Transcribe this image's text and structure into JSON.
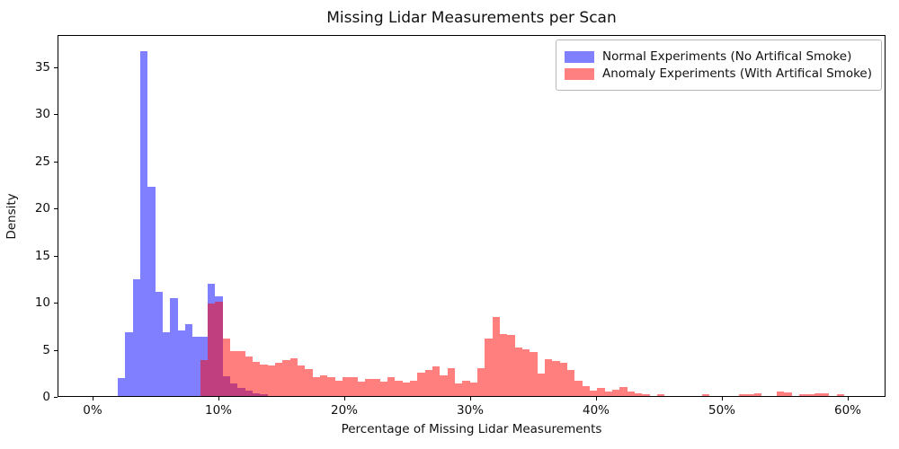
{
  "title": "Missing Lidar Measurements per Scan",
  "xlabel": "Percentage of Missing Lidar Measurements",
  "ylabel": "Density",
  "legend": [
    {
      "label": "Normal Experiments (No Artifical Smoke)",
      "color": "rgba(0,0,255,0.5)",
      "swatch_hex": "#8080ff"
    },
    {
      "label": "Anomaly Experiments (With Artifical Smoke)",
      "color": "rgba(255,0,0,0.5)",
      "swatch_hex": "#ff8080"
    }
  ],
  "chart_data": {
    "type": "bar",
    "subtype": "overlapping-density-histograms",
    "title": "Missing Lidar Measurements per Scan",
    "xlabel": "Percentage of Missing Lidar Measurements",
    "ylabel": "Density",
    "grid": false,
    "legend_position": "upper right",
    "xlim_pct": [
      -2.786,
      63.0
    ],
    "ylim": [
      0,
      38.4
    ],
    "x_tick_values_pct": [
      0,
      10,
      20,
      30,
      40,
      50,
      60
    ],
    "x_tick_labels": [
      "0%",
      "10%",
      "20%",
      "30%",
      "40%",
      "50%",
      "60%"
    ],
    "y_tick_values": [
      0,
      5,
      10,
      15,
      20,
      25,
      30,
      35
    ],
    "y_tick_labels": [
      "0",
      "5",
      "10",
      "15",
      "20",
      "25",
      "30",
      "35"
    ],
    "bin_width_pct": 0.595,
    "series": [
      {
        "name": "Normal Experiments (No Artifical Smoke)",
        "color": "rgba(0,0,255,0.5)",
        "bin_start_pct": 1.93,
        "densities": [
          1.9,
          6.8,
          12.4,
          36.6,
          22.2,
          11.1,
          6.8,
          10.35,
          7.0,
          7.6,
          6.3,
          6.3,
          11.9,
          10.6,
          2.1,
          1.3,
          0.9,
          0.55,
          0.3,
          0.15
        ]
      },
      {
        "name": "Anomaly Experiments (With Artifical Smoke)",
        "color": "rgba(255,0,0,0.5)",
        "bin_start_pct": 8.48,
        "densities": [
          3.8,
          9.8,
          10.0,
          6.1,
          4.8,
          4.75,
          4.2,
          3.6,
          3.3,
          3.2,
          3.5,
          3.8,
          4.05,
          3.25,
          2.9,
          2.0,
          2.2,
          2.0,
          1.6,
          2.0,
          2.0,
          1.5,
          1.8,
          1.8,
          1.5,
          2.0,
          1.65,
          1.4,
          1.65,
          2.5,
          2.75,
          3.1,
          2.2,
          3.0,
          1.3,
          1.6,
          1.45,
          3.0,
          6.1,
          8.4,
          6.6,
          6.45,
          5.1,
          5.0,
          4.7,
          2.4,
          3.9,
          3.7,
          3.55,
          2.75,
          1.6,
          1.05,
          0.55,
          0.9,
          0.5,
          0.65,
          1.0,
          0.5,
          0.25,
          0.15,
          0,
          0.15,
          0,
          0,
          0,
          0,
          0,
          0.15,
          0,
          0,
          0,
          0,
          0.2,
          0.2,
          0.25,
          0,
          0,
          0.5,
          0.35,
          0,
          0.15,
          0.15,
          0.25,
          0.25,
          0,
          0.2
        ]
      }
    ]
  }
}
